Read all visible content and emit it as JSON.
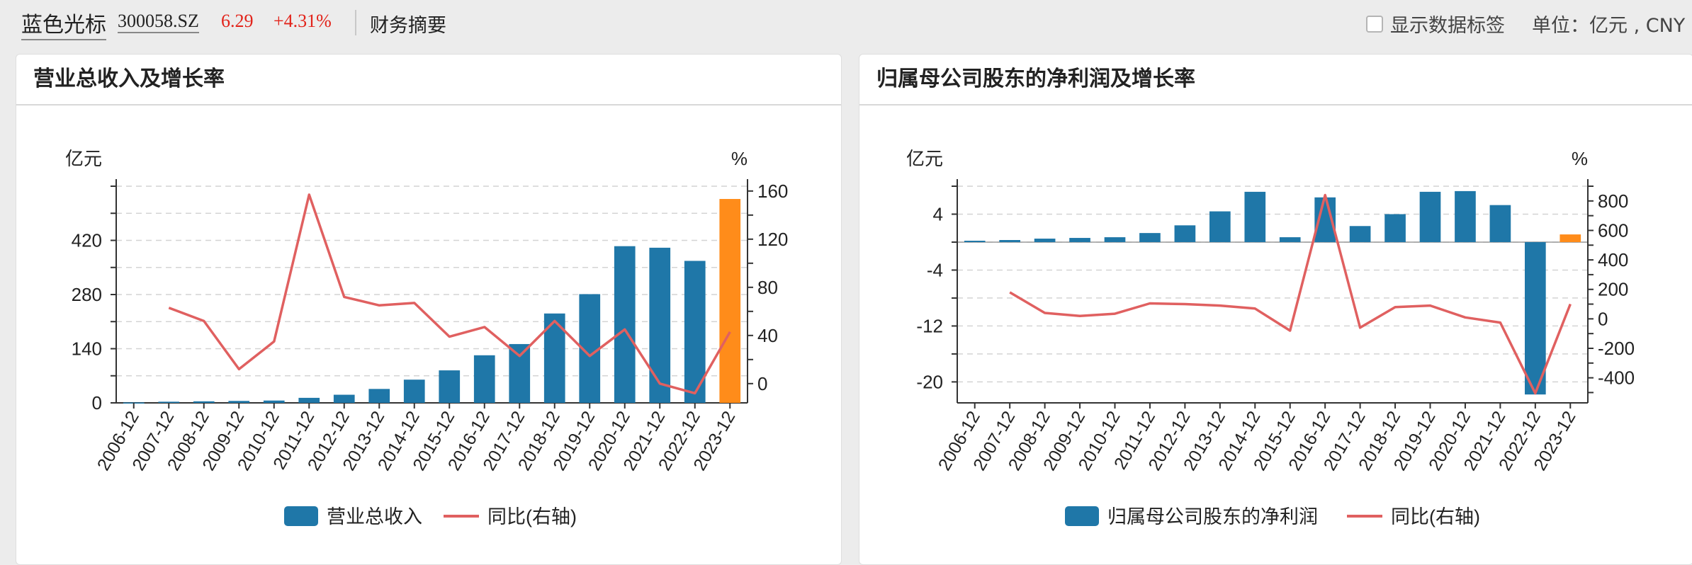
{
  "header": {
    "stock_name": "蓝色光标",
    "stock_code": "300058.SZ",
    "price": "6.29",
    "change": "+4.31%",
    "page": "财务摘要",
    "show_labels": "显示数据标签",
    "unit": "单位：亿元 , CNY"
  },
  "colors": {
    "bar": "#1f77a8",
    "bar_highlight": "#ff8c1a",
    "line": "#e06060",
    "up": "#e2231a"
  },
  "chart_data": [
    {
      "type": "bar",
      "title": "营业总收入及增长率",
      "categories": [
        "2006-12",
        "2007-12",
        "2008-12",
        "2009-12",
        "2010-12",
        "2011-12",
        "2012-12",
        "2013-12",
        "2014-12",
        "2015-12",
        "2016-12",
        "2017-12",
        "2018-12",
        "2019-12",
        "2020-12",
        "2021-12",
        "2022-12",
        "2023-12"
      ],
      "left_axis": {
        "label": "亿元",
        "ticks": [
          0,
          140,
          280,
          420
        ],
        "range": [
          0,
          560
        ]
      },
      "right_axis": {
        "label": "%",
        "ticks": [
          0,
          40,
          80,
          120,
          160
        ],
        "range": [
          -16,
          164
        ]
      },
      "series": [
        {
          "name": "营业总收入",
          "kind": "bar",
          "values": [
            1,
            3,
            4,
            5,
            6,
            13,
            21,
            36,
            60,
            84,
            123,
            152,
            231,
            281,
            405,
            401,
            367,
            527
          ]
        },
        {
          "name": "同比(右轴)",
          "kind": "line",
          "axis": "right",
          "values": [
            null,
            63,
            52,
            12,
            35,
            157,
            72,
            65,
            67,
            39,
            47,
            23,
            52,
            23,
            45,
            0,
            -8,
            43
          ]
        }
      ],
      "highlight_index": 17,
      "legend": "bottom"
    },
    {
      "type": "bar",
      "title": "归属母公司股东的净利润及增长率",
      "categories": [
        "2006-12",
        "2007-12",
        "2008-12",
        "2009-12",
        "2010-12",
        "2011-12",
        "2012-12",
        "2013-12",
        "2014-12",
        "2015-12",
        "2016-12",
        "2017-12",
        "2018-12",
        "2019-12",
        "2020-12",
        "2021-12",
        "2022-12",
        "2023-12"
      ],
      "left_axis": {
        "label": "亿元",
        "ticks": [
          -20,
          -12,
          -4,
          4
        ],
        "range": [
          -23,
          8
        ]
      },
      "right_axis": {
        "label": "%",
        "ticks": [
          -400,
          -200,
          0,
          200,
          400,
          600,
          800
        ],
        "range": [
          -570,
          900
        ]
      },
      "series": [
        {
          "name": "归属母公司股东的净利润",
          "kind": "bar",
          "values": [
            0.2,
            0.3,
            0.5,
            0.6,
            0.7,
            1.3,
            2.4,
            4.4,
            7.2,
            0.7,
            6.4,
            2.3,
            4.0,
            7.2,
            7.3,
            5.3,
            -21.8,
            1.1
          ]
        },
        {
          "name": "同比(右轴)",
          "kind": "line",
          "axis": "right",
          "values": [
            null,
            180,
            40,
            20,
            35,
            105,
            100,
            90,
            70,
            -80,
            840,
            -60,
            80,
            90,
            10,
            -25,
            -505,
            100
          ]
        }
      ],
      "highlight_index": 17,
      "legend": "bottom"
    }
  ]
}
